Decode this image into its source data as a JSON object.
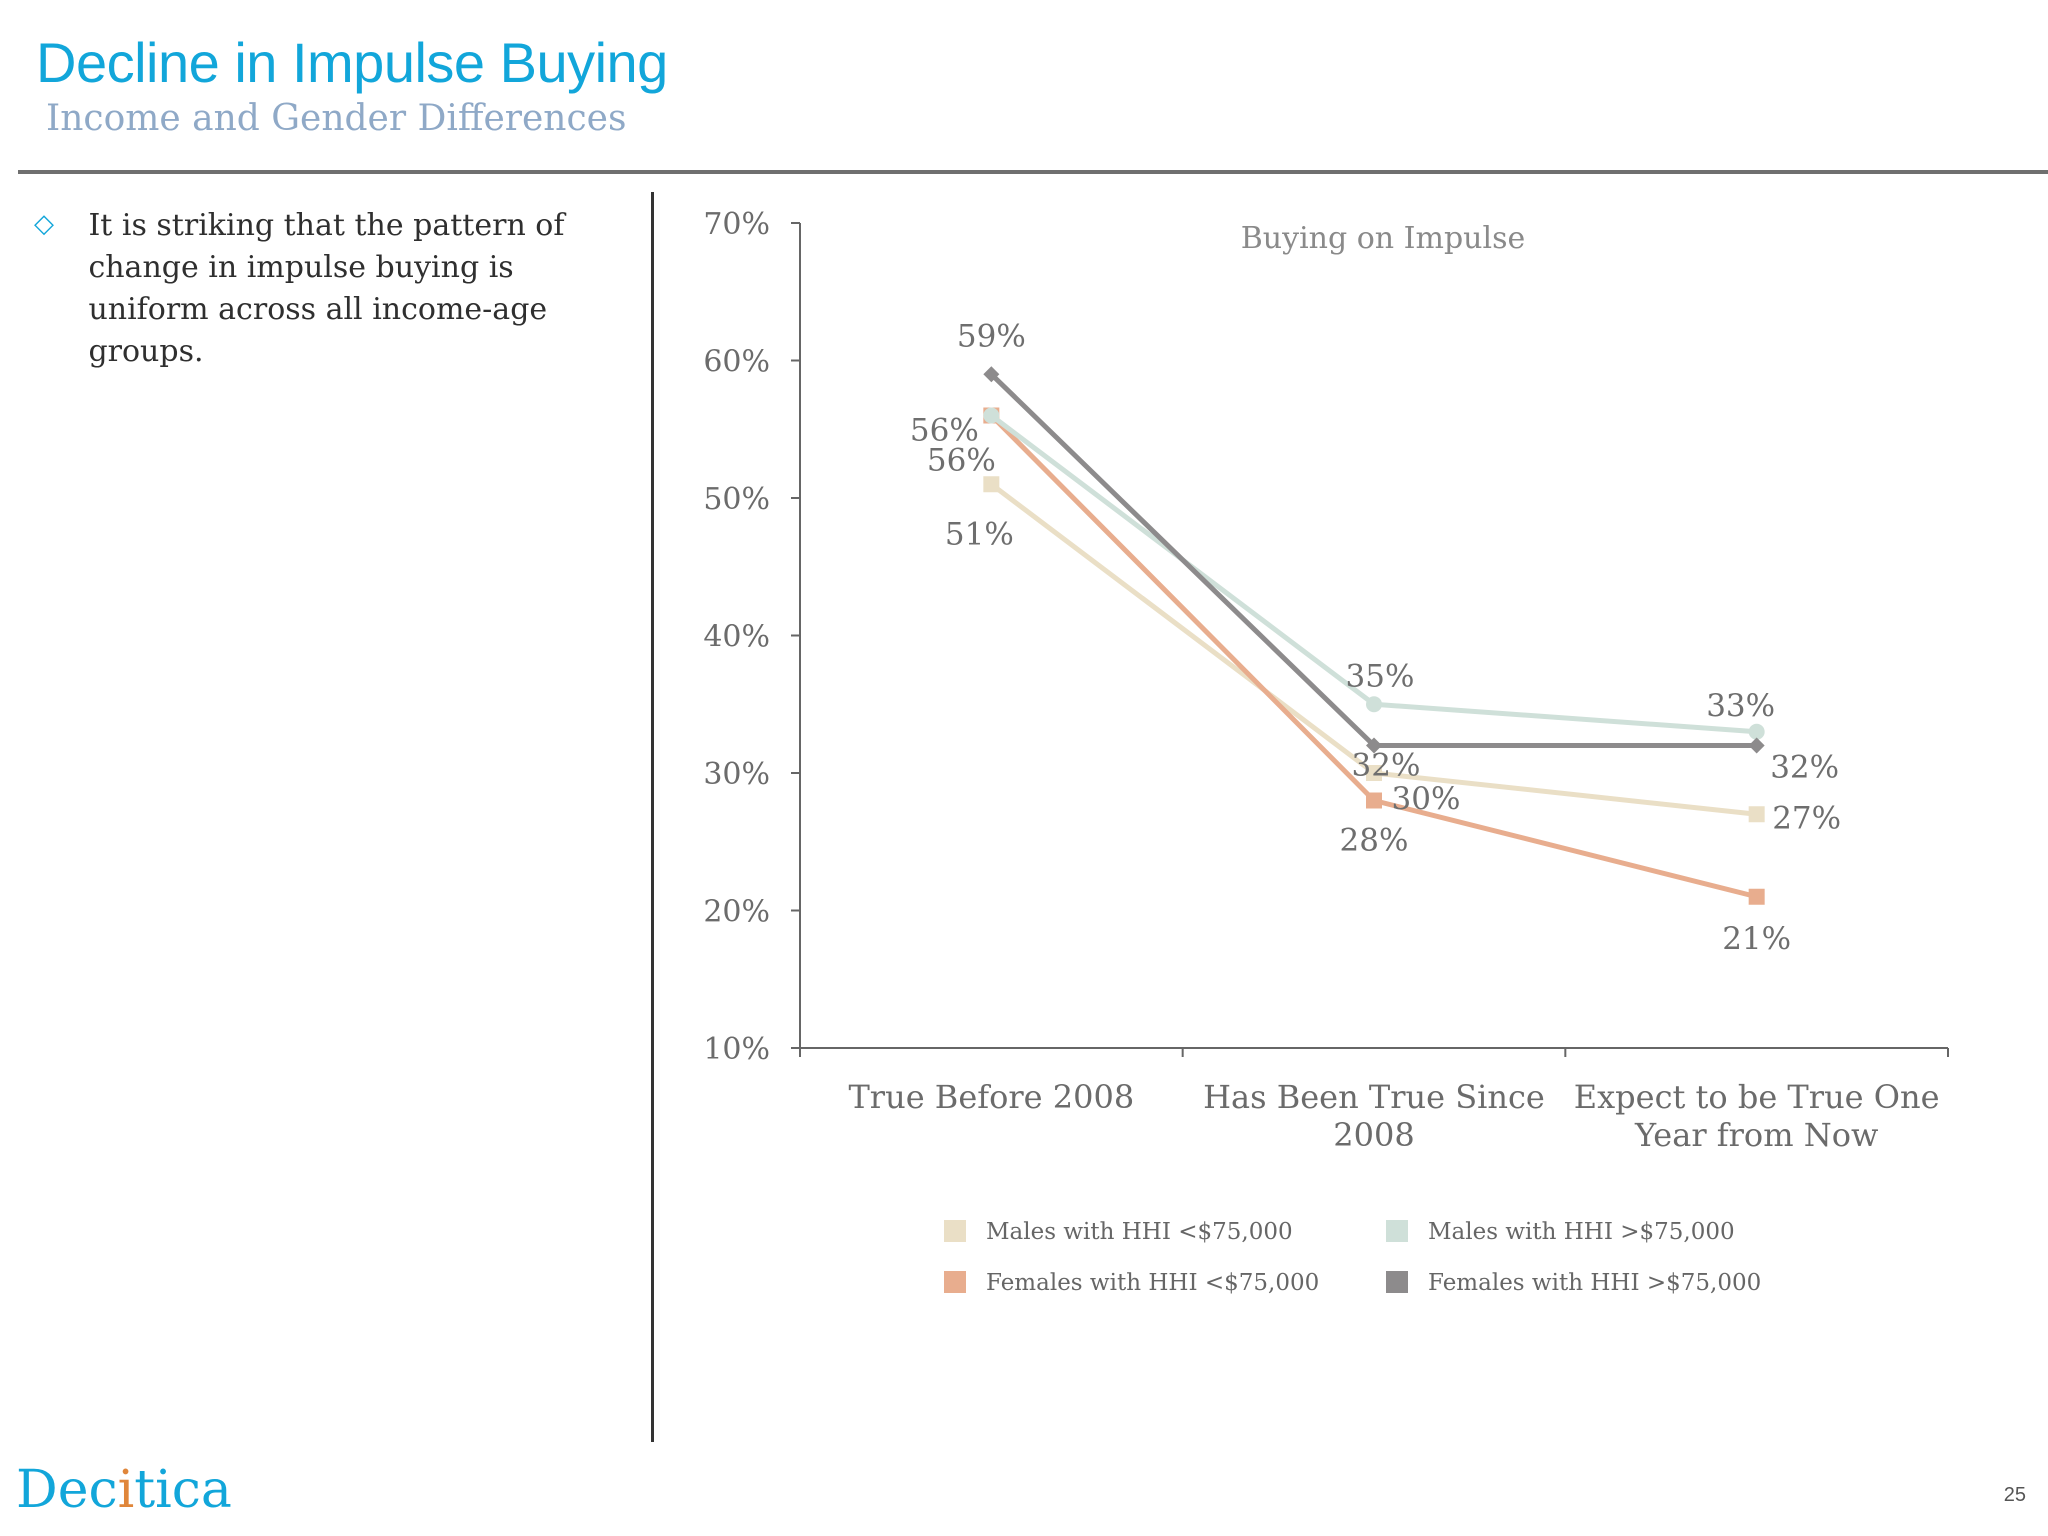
{
  "slide": {
    "title": "Decline in Impulse Buying",
    "subtitle": "Income and Gender Differences",
    "bullet_icon": "◇",
    "bullet_text": "It is striking that the pattern of change in impulse buying is uniform across all income-age groups.",
    "logo_text_main": "Dec",
    "logo_text_accent": "i",
    "logo_text_tail": "tica",
    "page_number": "25"
  },
  "colors": {
    "title": "#12a6da",
    "subtitle": "#8fa9c7"
  },
  "chart_data": {
    "type": "line",
    "title": "Buying on Impulse",
    "xlabel": "",
    "ylabel": "",
    "categories": [
      [
        "True Before 2008"
      ],
      [
        "Has Been True Since",
        "2008"
      ],
      [
        "Expect to be True One",
        "Year from Now"
      ]
    ],
    "ylim": [
      10,
      70
    ],
    "yticks": [
      10,
      20,
      30,
      40,
      50,
      60,
      70
    ],
    "ytick_labels": [
      "10%",
      "20%",
      "30%",
      "40%",
      "50%",
      "60%",
      "70%"
    ],
    "grid": false,
    "legend_position": "bottom",
    "series": [
      {
        "name": "Males with HHI <$75,000",
        "values": [
          51,
          30,
          27
        ],
        "labels": [
          "51%",
          "30%",
          "27%"
        ],
        "color": "#eadfc6",
        "marker": "square"
      },
      {
        "name": "Males with HHI >$75,000",
        "values": [
          56,
          35,
          33
        ],
        "labels": [
          "56%",
          "35%",
          "33%"
        ],
        "color": "#cfe0d9",
        "marker": "circle"
      },
      {
        "name": "Females with HHI <$75,000",
        "values": [
          56,
          28,
          21
        ],
        "labels": [
          "56%",
          "28%",
          "21%"
        ],
        "color": "#e8ad8e",
        "marker": "square"
      },
      {
        "name": "Females with HHI >$75,000",
        "values": [
          59,
          32,
          32
        ],
        "labels": [
          "59%",
          "32%",
          "32%"
        ],
        "color": "#8d8b8c",
        "marker": "diamond"
      }
    ]
  }
}
